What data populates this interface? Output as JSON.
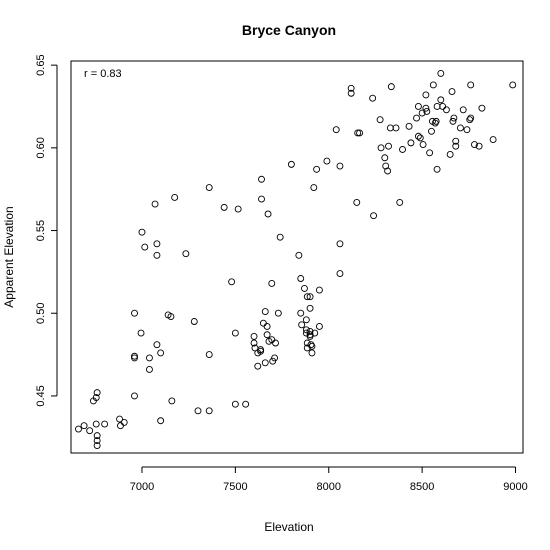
{
  "chart_data": {
    "type": "scatter",
    "title": "Bryce Canyon",
    "xlabel": "Elevation",
    "ylabel": "Apparent Elevation",
    "xlim": [
      6620,
      9040
    ],
    "ylim": [
      0.4155,
      0.6525
    ],
    "xticks": [
      7000,
      7500,
      8000,
      8500,
      9000
    ],
    "yticks": [
      0.45,
      0.5,
      0.55,
      0.6,
      0.65
    ],
    "xtick_labels": [
      "7000",
      "7500",
      "8000",
      "8500",
      "9000"
    ],
    "ytick_labels": [
      "0.45",
      "0.50",
      "0.55",
      "0.60",
      "0.65"
    ],
    "annotation": "r =  0.83",
    "grid": false,
    "marker": "open-circle",
    "points": [
      [
        6660,
        0.43
      ],
      [
        6690,
        0.432
      ],
      [
        6720,
        0.429
      ],
      [
        6740,
        0.447
      ],
      [
        6755,
        0.449
      ],
      [
        6760,
        0.452
      ],
      [
        6760,
        0.426
      ],
      [
        6760,
        0.423
      ],
      [
        6760,
        0.42
      ],
      [
        6755,
        0.433
      ],
      [
        6800,
        0.433
      ],
      [
        6880,
        0.436
      ],
      [
        6885,
        0.432
      ],
      [
        6905,
        0.434
      ],
      [
        6960,
        0.5
      ],
      [
        6960,
        0.474
      ],
      [
        6960,
        0.473
      ],
      [
        6960,
        0.45
      ],
      [
        6995,
        0.488
      ],
      [
        7000,
        0.549
      ],
      [
        7015,
        0.54
      ],
      [
        7040,
        0.473
      ],
      [
        7040,
        0.466
      ],
      [
        7070,
        0.566
      ],
      [
        7080,
        0.542
      ],
      [
        7080,
        0.535
      ],
      [
        7080,
        0.481
      ],
      [
        7100,
        0.476
      ],
      [
        7100,
        0.435
      ],
      [
        7140,
        0.499
      ],
      [
        7155,
        0.498
      ],
      [
        7160,
        0.447
      ],
      [
        7175,
        0.57
      ],
      [
        7235,
        0.536
      ],
      [
        7280,
        0.495
      ],
      [
        7300,
        0.441
      ],
      [
        7360,
        0.576
      ],
      [
        7360,
        0.475
      ],
      [
        7360,
        0.441
      ],
      [
        7440,
        0.564
      ],
      [
        7480,
        0.519
      ],
      [
        7500,
        0.488
      ],
      [
        7500,
        0.445
      ],
      [
        7515,
        0.563
      ],
      [
        7555,
        0.445
      ],
      [
        7600,
        0.486
      ],
      [
        7600,
        0.482
      ],
      [
        7605,
        0.479
      ],
      [
        7620,
        0.468
      ],
      [
        7620,
        0.476
      ],
      [
        7635,
        0.478
      ],
      [
        7635,
        0.477
      ],
      [
        7640,
        0.581
      ],
      [
        7640,
        0.569
      ],
      [
        7650,
        0.494
      ],
      [
        7660,
        0.501
      ],
      [
        7660,
        0.47
      ],
      [
        7670,
        0.487
      ],
      [
        7670,
        0.492
      ],
      [
        7675,
        0.56
      ],
      [
        7680,
        0.483
      ],
      [
        7695,
        0.518
      ],
      [
        7695,
        0.484
      ],
      [
        7700,
        0.471
      ],
      [
        7710,
        0.473
      ],
      [
        7715,
        0.482
      ],
      [
        7730,
        0.5
      ],
      [
        7740,
        0.546
      ],
      [
        7800,
        0.59
      ],
      [
        7840,
        0.535
      ],
      [
        7850,
        0.521
      ],
      [
        7850,
        0.5
      ],
      [
        7855,
        0.493
      ],
      [
        7870,
        0.515
      ],
      [
        7880,
        0.496
      ],
      [
        7880,
        0.49
      ],
      [
        7880,
        0.488
      ],
      [
        7885,
        0.482
      ],
      [
        7885,
        0.479
      ],
      [
        7885,
        0.51
      ],
      [
        7900,
        0.51
      ],
      [
        7900,
        0.503
      ],
      [
        7900,
        0.489
      ],
      [
        7900,
        0.487
      ],
      [
        7900,
        0.486
      ],
      [
        7905,
        0.481
      ],
      [
        7910,
        0.48
      ],
      [
        7910,
        0.476
      ],
      [
        7920,
        0.576
      ],
      [
        7925,
        0.488
      ],
      [
        7935,
        0.587
      ],
      [
        7950,
        0.514
      ],
      [
        7950,
        0.492
      ],
      [
        7990,
        0.592
      ],
      [
        8040,
        0.611
      ],
      [
        8060,
        0.589
      ],
      [
        8060,
        0.542
      ],
      [
        8060,
        0.524
      ],
      [
        8120,
        0.636
      ],
      [
        8120,
        0.633
      ],
      [
        8150,
        0.567
      ],
      [
        8155,
        0.609
      ],
      [
        8165,
        0.609
      ],
      [
        8235,
        0.63
      ],
      [
        8240,
        0.559
      ],
      [
        8275,
        0.617
      ],
      [
        8280,
        0.6
      ],
      [
        8300,
        0.594
      ],
      [
        8305,
        0.589
      ],
      [
        8315,
        0.586
      ],
      [
        8320,
        0.601
      ],
      [
        8330,
        0.612
      ],
      [
        8335,
        0.637
      ],
      [
        8360,
        0.612
      ],
      [
        8380,
        0.567
      ],
      [
        8395,
        0.599
      ],
      [
        8430,
        0.613
      ],
      [
        8440,
        0.603
      ],
      [
        8470,
        0.618
      ],
      [
        8480,
        0.625
      ],
      [
        8480,
        0.607
      ],
      [
        8490,
        0.606
      ],
      [
        8500,
        0.621
      ],
      [
        8505,
        0.602
      ],
      [
        8520,
        0.632
      ],
      [
        8520,
        0.624
      ],
      [
        8525,
        0.622
      ],
      [
        8540,
        0.597
      ],
      [
        8550,
        0.61
      ],
      [
        8555,
        0.616
      ],
      [
        8560,
        0.638
      ],
      [
        8570,
        0.615
      ],
      [
        8575,
        0.616
      ],
      [
        8580,
        0.625
      ],
      [
        8580,
        0.587
      ],
      [
        8600,
        0.645
      ],
      [
        8600,
        0.629
      ],
      [
        8610,
        0.625
      ],
      [
        8630,
        0.623
      ],
      [
        8650,
        0.596
      ],
      [
        8660,
        0.634
      ],
      [
        8665,
        0.616
      ],
      [
        8670,
        0.618
      ],
      [
        8680,
        0.604
      ],
      [
        8680,
        0.601
      ],
      [
        8705,
        0.612
      ],
      [
        8720,
        0.623
      ],
      [
        8740,
        0.611
      ],
      [
        8755,
        0.617
      ],
      [
        8760,
        0.618
      ],
      [
        8760,
        0.638
      ],
      [
        8780,
        0.602
      ],
      [
        8805,
        0.601
      ],
      [
        8820,
        0.624
      ],
      [
        8880,
        0.605
      ],
      [
        8985,
        0.638
      ]
    ]
  }
}
